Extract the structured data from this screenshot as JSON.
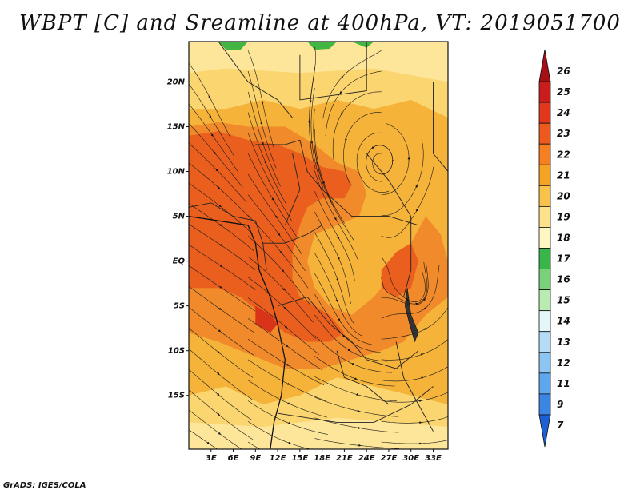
{
  "title": "WBPT [C] and Sreamline at 400hPa, VT: 2019051700",
  "footer": "GrADS: IGES/COLA",
  "map": {
    "lon_range": [
      0.0,
      35.0
    ],
    "lat_range": [
      -21.0,
      24.5
    ],
    "lat_ticks": [
      {
        "value": 20,
        "label": "20N"
      },
      {
        "value": 15,
        "label": "15N"
      },
      {
        "value": 10,
        "label": "10N"
      },
      {
        "value": 5,
        "label": "5N"
      },
      {
        "value": 0,
        "label": "EQ"
      },
      {
        "value": -5,
        "label": "5S"
      },
      {
        "value": -10,
        "label": "10S"
      },
      {
        "value": -15,
        "label": "15S"
      }
    ],
    "lon_ticks": [
      {
        "value": 3,
        "label": "3E"
      },
      {
        "value": 6,
        "label": "6E"
      },
      {
        "value": 9,
        "label": "9E"
      },
      {
        "value": 12,
        "label": "12E"
      },
      {
        "value": 15,
        "label": "15E"
      },
      {
        "value": 18,
        "label": "18E"
      },
      {
        "value": 21,
        "label": "21E"
      },
      {
        "value": 24,
        "label": "24E"
      },
      {
        "value": 27,
        "label": "27E"
      },
      {
        "value": 30,
        "label": "30E"
      },
      {
        "value": 33,
        "label": "33E"
      }
    ],
    "background_fill_color": "#f5b33a",
    "field_regions": [
      {
        "level": 22,
        "color": "#f08a2a",
        "points": [
          [
            0,
            15
          ],
          [
            4,
            15.5
          ],
          [
            8,
            15
          ],
          [
            13,
            15
          ],
          [
            17,
            13
          ],
          [
            20,
            11
          ],
          [
            23,
            10
          ],
          [
            24,
            7.5
          ],
          [
            23,
            5
          ],
          [
            20,
            4
          ],
          [
            17,
            3
          ],
          [
            16,
            0
          ],
          [
            17,
            -3
          ],
          [
            19,
            -5
          ],
          [
            22,
            -6
          ],
          [
            25,
            -4
          ],
          [
            27,
            -2
          ],
          [
            29,
            0
          ],
          [
            30,
            2
          ],
          [
            32,
            5
          ],
          [
            34,
            3
          ],
          [
            35,
            0
          ],
          [
            35,
            -4
          ],
          [
            32,
            -6
          ],
          [
            29,
            -9
          ],
          [
            26,
            -10
          ],
          [
            22,
            -11
          ],
          [
            18,
            -12
          ],
          [
            13,
            -12
          ],
          [
            10,
            -11
          ],
          [
            7,
            -10
          ],
          [
            4,
            -9
          ],
          [
            0,
            -8
          ]
        ]
      },
      {
        "level": 23,
        "color": "#ea5f1e",
        "points": [
          [
            0,
            14
          ],
          [
            4,
            14.5
          ],
          [
            8,
            13.5
          ],
          [
            12,
            13
          ],
          [
            15,
            12
          ],
          [
            18,
            10.5
          ],
          [
            21,
            10
          ],
          [
            22,
            8.5
          ],
          [
            21,
            7
          ],
          [
            18,
            7
          ],
          [
            16,
            6
          ],
          [
            15,
            4
          ],
          [
            14,
            1
          ],
          [
            14,
            -2
          ],
          [
            15,
            -4
          ],
          [
            17,
            -5
          ],
          [
            19,
            -6
          ],
          [
            21,
            -8
          ],
          [
            19,
            -9
          ],
          [
            16,
            -9
          ],
          [
            13,
            -8
          ],
          [
            10,
            -6
          ],
          [
            7,
            -4
          ],
          [
            4,
            -3
          ],
          [
            0,
            -3
          ]
        ]
      },
      {
        "level": 23,
        "color": "#ea5f1e",
        "points": [
          [
            26,
            -1
          ],
          [
            28,
            1
          ],
          [
            30,
            2
          ],
          [
            31,
            0
          ],
          [
            30,
            -3
          ],
          [
            28,
            -4
          ],
          [
            26,
            -3
          ]
        ]
      },
      {
        "level": 24,
        "color": "#d9341a",
        "points": [
          [
            9,
            -5
          ],
          [
            11,
            -6
          ],
          [
            12,
            -7
          ],
          [
            11,
            -8
          ],
          [
            9,
            -7
          ]
        ]
      }
    ],
    "light_regions": [
      {
        "level": 20,
        "color": "#fbd56f",
        "points": [
          [
            0,
            24.5
          ],
          [
            35,
            24.5
          ],
          [
            35,
            16
          ],
          [
            30,
            18
          ],
          [
            25,
            17
          ],
          [
            20,
            18
          ],
          [
            15,
            17
          ],
          [
            10,
            18
          ],
          [
            5,
            17
          ],
          [
            0,
            17
          ]
        ]
      },
      {
        "level": 20,
        "color": "#fbd56f",
        "points": [
          [
            0,
            -15
          ],
          [
            5,
            -14
          ],
          [
            10,
            -16
          ],
          [
            15,
            -15
          ],
          [
            20,
            -13
          ],
          [
            25,
            -14
          ],
          [
            30,
            -15
          ],
          [
            35,
            -16
          ],
          [
            35,
            -21
          ],
          [
            0,
            -21
          ]
        ]
      },
      {
        "level": 19,
        "color": "#fde699",
        "points": [
          [
            0,
            24.5
          ],
          [
            35,
            24.5
          ],
          [
            35,
            20
          ],
          [
            25,
            21.5
          ],
          [
            15,
            21
          ],
          [
            5,
            21.5
          ],
          [
            0,
            21
          ]
        ]
      },
      {
        "level": 19,
        "color": "#fde699",
        "points": [
          [
            0,
            -18
          ],
          [
            10,
            -18.5
          ],
          [
            20,
            -17.5
          ],
          [
            35,
            -18.5
          ],
          [
            35,
            -21
          ],
          [
            0,
            -21
          ]
        ]
      },
      {
        "level": 18,
        "color": "#43b543",
        "points": [
          [
            4,
            24.5
          ],
          [
            8,
            24.5
          ],
          [
            7,
            23.6
          ],
          [
            5,
            23.6
          ]
        ]
      },
      {
        "level": 18,
        "color": "#43b543",
        "points": [
          [
            16,
            24.5
          ],
          [
            20,
            24.5
          ],
          [
            19,
            23.7
          ],
          [
            17,
            23.6
          ]
        ]
      },
      {
        "level": 18,
        "color": "#43b543",
        "points": [
          [
            22,
            24.5
          ],
          [
            25,
            24.5
          ],
          [
            24,
            23.8
          ]
        ]
      }
    ],
    "borders": [
      [
        [
          0,
          6
        ],
        [
          3,
          6.5
        ],
        [
          6,
          5
        ],
        [
          9,
          4.5
        ],
        [
          10,
          2
        ],
        [
          10.5,
          -1
        ]
      ],
      [
        [
          9,
          13
        ],
        [
          13,
          13
        ],
        [
          15,
          13.5
        ],
        [
          16,
          10
        ],
        [
          18,
          8
        ],
        [
          22,
          5
        ],
        [
          27,
          5
        ],
        [
          31,
          4
        ]
      ],
      [
        [
          10,
          2
        ],
        [
          13,
          2
        ],
        [
          16,
          3
        ],
        [
          18,
          4
        ]
      ],
      [
        [
          12,
          -5
        ],
        [
          16,
          -4
        ],
        [
          19,
          -7
        ],
        [
          22,
          -9
        ],
        [
          24,
          -11
        ],
        [
          28,
          -12
        ],
        [
          31,
          -10
        ]
      ],
      [
        [
          15,
          23
        ],
        [
          15,
          18
        ],
        [
          24,
          19
        ],
        [
          24,
          24.5
        ]
      ],
      [
        [
          24,
          12
        ],
        [
          27,
          9
        ],
        [
          30,
          5
        ],
        [
          30,
          -1
        ],
        [
          29,
          -4
        ]
      ],
      [
        [
          12,
          -17
        ],
        [
          20,
          -18
        ],
        [
          25,
          -18
        ],
        [
          30,
          -16
        ],
        [
          33,
          -14
        ]
      ],
      [
        [
          20,
          -10
        ],
        [
          21,
          -13
        ],
        [
          24,
          -14
        ],
        [
          27,
          -16
        ]
      ],
      [
        [
          28,
          -9
        ],
        [
          29,
          -13
        ],
        [
          31,
          -16
        ],
        [
          33,
          -19
        ]
      ],
      [
        [
          4,
          24.5
        ],
        [
          8,
          20
        ],
        [
          12,
          18
        ],
        [
          14,
          16
        ]
      ],
      [
        [
          14,
          12
        ],
        [
          15,
          8
        ],
        [
          14,
          6
        ],
        [
          13,
          4
        ]
      ],
      [
        [
          33,
          20
        ],
        [
          33,
          12
        ],
        [
          35,
          10
        ]
      ]
    ],
    "coast": [
      [
        0,
        5
      ],
      [
        4,
        4.5
      ],
      [
        8,
        4
      ],
      [
        9,
        2
      ],
      [
        9.5,
        -1
      ],
      [
        11,
        -4
      ],
      [
        12,
        -7
      ],
      [
        13,
        -11
      ],
      [
        12.5,
        -15
      ],
      [
        11.5,
        -18
      ],
      [
        11,
        -21
      ]
    ],
    "lake_points": [
      [
        29.5,
        -3
      ],
      [
        30,
        -6
      ],
      [
        31,
        -8
      ],
      [
        30.5,
        -9
      ],
      [
        29.8,
        -7
      ],
      [
        29.2,
        -5
      ]
    ],
    "streamline_flow": {
      "field": "westerly flow with cyclonic swirl",
      "cyclone_centers": [
        [
          24,
          -6
        ],
        [
          31,
          -4
        ],
        [
          26,
          11
        ]
      ]
    }
  },
  "colorbar": {
    "levels": [
      {
        "label": "26",
        "color": "#a50f15"
      },
      {
        "label": "25",
        "color": "#c91d1d"
      },
      {
        "label": "24",
        "color": "#e2371c"
      },
      {
        "label": "23",
        "color": "#ee5a1d"
      },
      {
        "label": "22",
        "color": "#f57f21"
      },
      {
        "label": "21",
        "color": "#f6a224"
      },
      {
        "label": "20",
        "color": "#f9c24a"
      },
      {
        "label": "19",
        "color": "#fde28a"
      },
      {
        "label": "18",
        "color": "#fff7c2"
      },
      {
        "label": "17",
        "color": "#39b54a"
      },
      {
        "label": "16",
        "color": "#79d279"
      },
      {
        "label": "15",
        "color": "#b8ecb0"
      },
      {
        "label": "14",
        "color": "#e3f6f8"
      },
      {
        "label": "13",
        "color": "#b5dcf6"
      },
      {
        "label": "12",
        "color": "#8cc5f2"
      },
      {
        "label": "11",
        "color": "#5ea7ee"
      },
      {
        "label": "9",
        "color": "#3b86e3"
      },
      {
        "label": "7",
        "color": "#1d5fd5"
      }
    ]
  }
}
